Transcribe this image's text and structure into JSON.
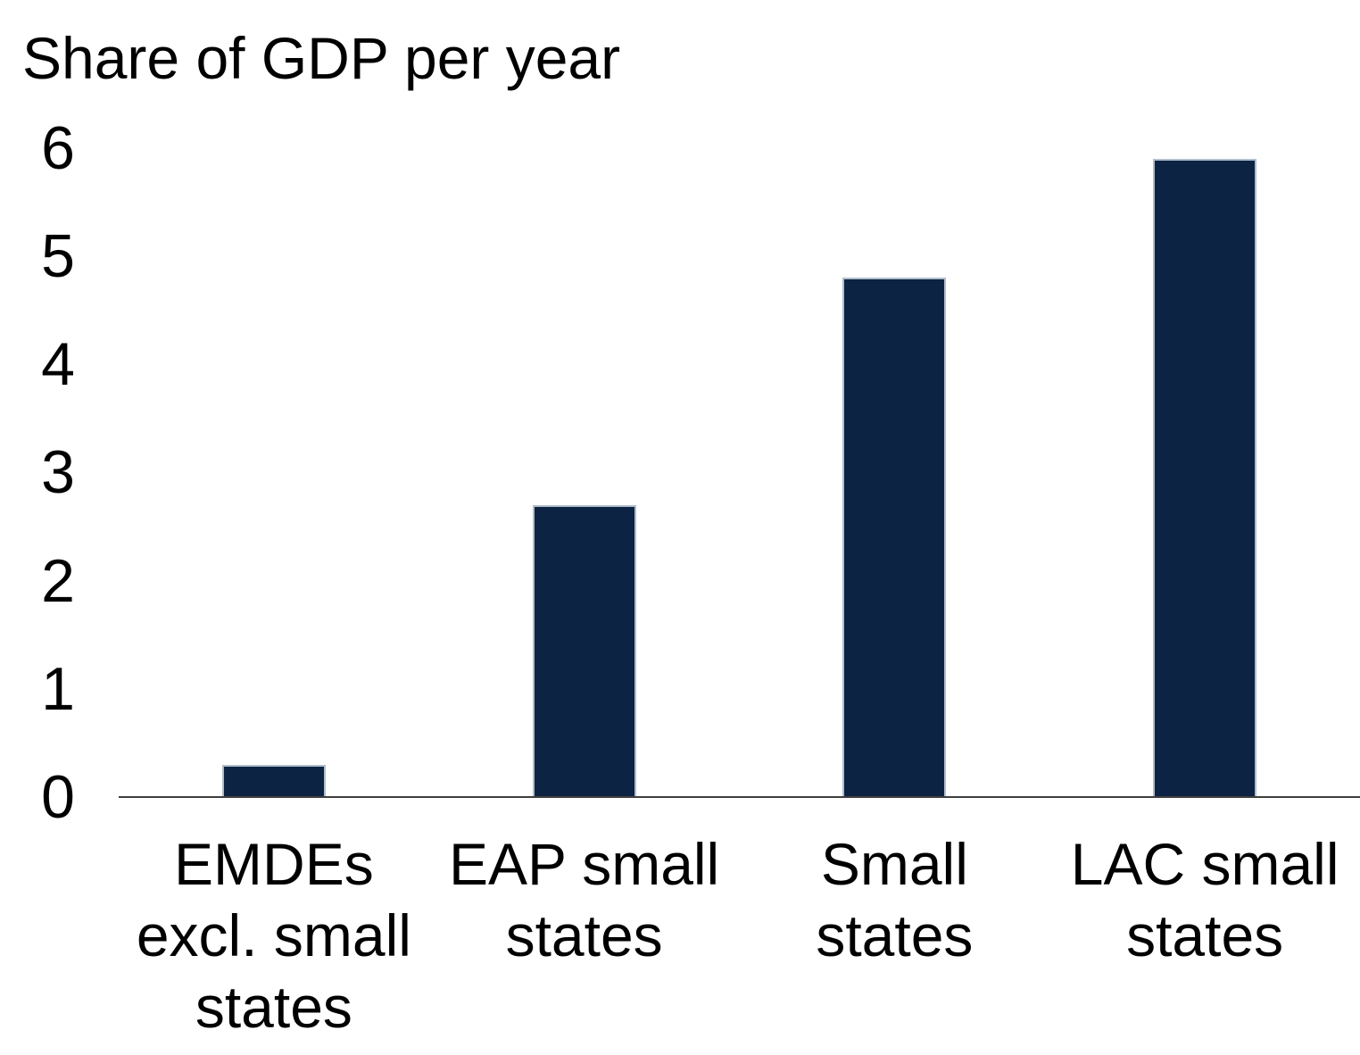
{
  "chart_data": {
    "type": "bar",
    "title": "Share of GDP per year",
    "categories": [
      "EMDEs excl. small states",
      "EAP small states",
      "Small states",
      "LAC small states"
    ],
    "category_lines": [
      [
        "EMDEs",
        "excl. small",
        "states"
      ],
      [
        "EAP small",
        "states"
      ],
      [
        "Small",
        "states"
      ],
      [
        "LAC small",
        "states"
      ]
    ],
    "values": [
      0.3,
      2.7,
      4.8,
      5.9
    ],
    "xlabel": "",
    "ylabel": "Share of GDP per year",
    "ylim": [
      0,
      6
    ],
    "yticks": [
      0,
      1,
      2,
      3,
      4,
      5,
      6
    ],
    "grid": false,
    "legend_position": "none",
    "colors": {
      "bar_fill": "#0d2344",
      "bar_border": "#b0bdcb",
      "axis_line": "#3f3f3f",
      "text": "#000000",
      "background": "#ffffff"
    }
  }
}
